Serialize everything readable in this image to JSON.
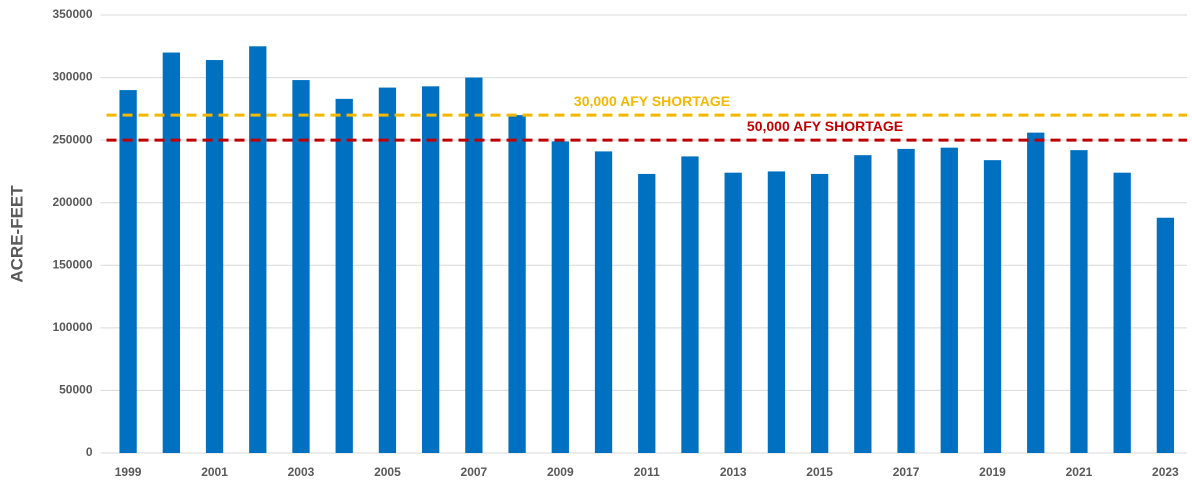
{
  "chart_data": {
    "type": "bar",
    "y_label": "ACRE-FEET",
    "categories": [
      "1999",
      null,
      "2001",
      null,
      "2003",
      null,
      "2005",
      null,
      "2007",
      null,
      "2009",
      null,
      "2011",
      null,
      "2013",
      null,
      "2015",
      null,
      "2017",
      null,
      "2019",
      null,
      "2021",
      null,
      "2023"
    ],
    "values": [
      290000,
      320000,
      314000,
      325000,
      298000,
      283000,
      292000,
      293000,
      300000,
      270000,
      249000,
      241000,
      223000,
      237000,
      224000,
      225000,
      223000,
      238000,
      243000,
      244000,
      234000,
      256000,
      242000,
      224000,
      188000
    ],
    "color": "#0070c0",
    "ylim": [
      0,
      350000
    ],
    "yticks": [
      0,
      50000,
      100000,
      150000,
      200000,
      250000,
      300000,
      350000
    ],
    "grid": true,
    "reference_lines": [
      {
        "value": 270000,
        "label": "30,000 AFY SHORTAGE",
        "color": "#f5b800"
      },
      {
        "value": 250000,
        "label": "50,000 AFY SHORTAGE",
        "color": "#c00000"
      }
    ]
  }
}
